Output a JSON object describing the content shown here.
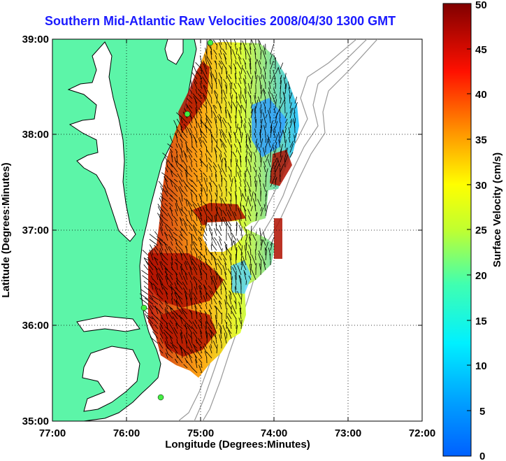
{
  "title": "Southern Mid-Atlantic Raw Velocities 2008/04/30 1300 GMT",
  "xlabel": "Longitude (Degrees:Minutes)",
  "ylabel": "Latitude (Degrees:Minutes)",
  "x_ticks": [
    "77:00",
    "76:00",
    "75:00",
    "74:00",
    "73:00",
    "72:00"
  ],
  "y_ticks": [
    "39:00",
    "38:00",
    "37:00",
    "36:00",
    "35:00"
  ],
  "colorbar": {
    "label": "Surface Velocity (cm/s)",
    "ticks": [
      "50",
      "45",
      "40",
      "35",
      "30",
      "25",
      "20",
      "15",
      "10",
      "5",
      "0"
    ],
    "range": [
      0,
      50
    ],
    "colors": [
      "#0000ff",
      "#00ffff",
      "#ffff00",
      "#ff0000",
      "#800000"
    ]
  },
  "colors": {
    "land": "#5cf5a8",
    "coast": "#000000",
    "bathymetry": "#999999",
    "site_marker": "#44ee44",
    "title": "#1a1aff"
  }
}
